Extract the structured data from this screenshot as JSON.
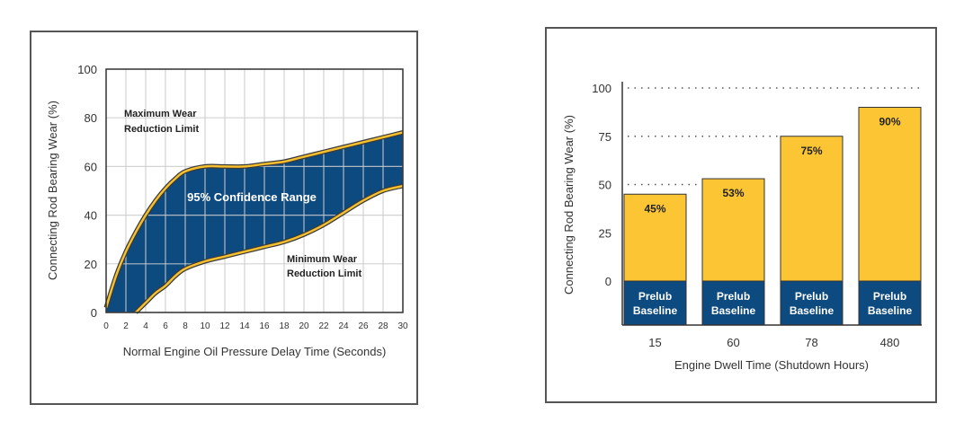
{
  "chart_data": [
    {
      "type": "area",
      "title": "",
      "xlabel": "Normal Engine Oil Pressure Delay Time (Seconds)",
      "ylabel": "Connecting Rod Bearing Wear (%)",
      "xlim": [
        0,
        30
      ],
      "ylim": [
        0,
        100
      ],
      "xticks": [
        "0",
        "2",
        "4",
        "6",
        "8",
        "10",
        "12",
        "14",
        "16",
        "18",
        "20",
        "22",
        "24",
        "26",
        "28",
        "30"
      ],
      "yticks": [
        "0",
        "20",
        "40",
        "60",
        "80",
        "100"
      ],
      "grid": true,
      "series": [
        {
          "name": "Maximum Wear Reduction Limit",
          "x": [
            0,
            1,
            2,
            3,
            4,
            5,
            6,
            7,
            8,
            10,
            12,
            14,
            16,
            18,
            20,
            22,
            24,
            26,
            28,
            30
          ],
          "values": [
            2,
            15,
            25,
            33,
            40,
            46,
            51,
            55,
            58,
            60,
            60,
            60,
            61,
            62,
            64,
            66,
            68,
            70,
            72,
            74
          ]
        },
        {
          "name": "Minimum Wear Reduction Limit",
          "x": [
            3,
            4,
            5,
            6,
            7,
            8,
            10,
            12,
            14,
            16,
            18,
            20,
            22,
            24,
            26,
            28,
            30
          ],
          "values": [
            0,
            4,
            8,
            11,
            15,
            18,
            21,
            23,
            25,
            27,
            29,
            32,
            36,
            41,
            46,
            50,
            52
          ]
        }
      ],
      "annotations": [
        {
          "text": "Maximum Wear",
          "line2": "Reduction Limit"
        },
        {
          "text": "95% Confidence Range"
        },
        {
          "text": "Minimum Wear",
          "line2": "Reduction Limit"
        }
      ],
      "colors": {
        "band": "#0d4a80",
        "edge": "#f5bf2e",
        "grid": "#cccccc"
      }
    },
    {
      "type": "bar",
      "title": "",
      "xlabel": "Engine Dwell Time (Shutdown Hours)",
      "ylabel": "Connecting Rod Bearing Wear (%)",
      "categories": [
        "15",
        "60",
        "78",
        "480"
      ],
      "values": [
        45,
        53,
        75,
        90
      ],
      "value_labels": [
        "45%",
        "53%",
        "75%",
        "90%"
      ],
      "baseline_label_line1": "Prelub",
      "baseline_label_line2": "Baseline",
      "ylim": [
        0,
        100
      ],
      "yticks": [
        "0",
        "25",
        "50",
        "75",
        "100"
      ],
      "reference_lines": [
        50,
        75,
        100
      ],
      "colors": {
        "bar": "#fcc534",
        "baseline": "#0d4a80"
      }
    }
  ]
}
